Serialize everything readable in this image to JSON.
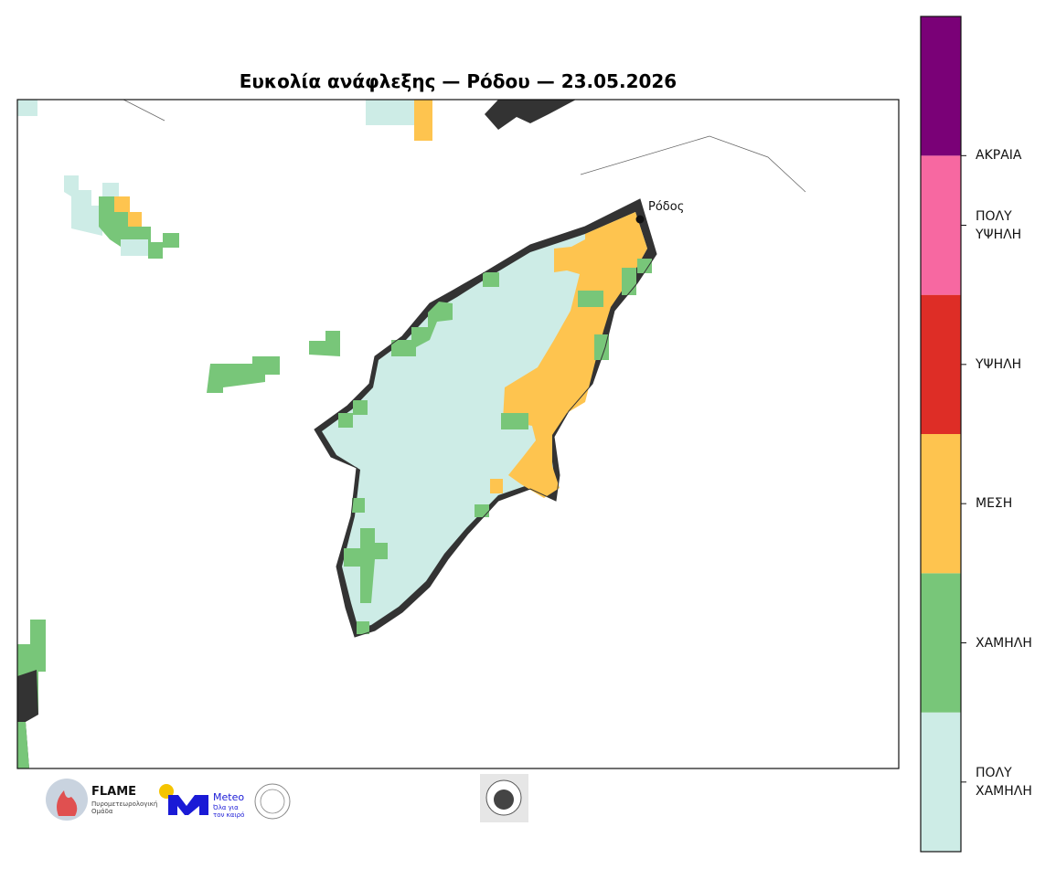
{
  "title": "Ευκολία ανάφλεξης — Ρόδου — 23.05.2026",
  "place_label": "Ρόδος",
  "legend": [
    {
      "label": "ΠΟΛΥ\nΧΑΜΗΛΗ",
      "color": "#cdece6"
    },
    {
      "label": "ΧΑΜΗΛΗ",
      "color": "#78c679"
    },
    {
      "label": "ΜΕΣΗ",
      "color": "#fec44f"
    },
    {
      "label": "ΥΨΗΛΗ",
      "color": "#de2d26"
    },
    {
      "label": "ΠΟΛΥ\nΥΨΗΛΗ",
      "color": "#f768a1"
    },
    {
      "label": "ΑΚΡΑΙΑ",
      "color": "#7a0177"
    }
  ],
  "logos": {
    "flame": "FLAME",
    "flame_sub": "Πυρομετεωρολογική\nΟμάδα",
    "meteo": "Meteo",
    "meteo_sub": "Όλα για\nτον καιρό"
  }
}
